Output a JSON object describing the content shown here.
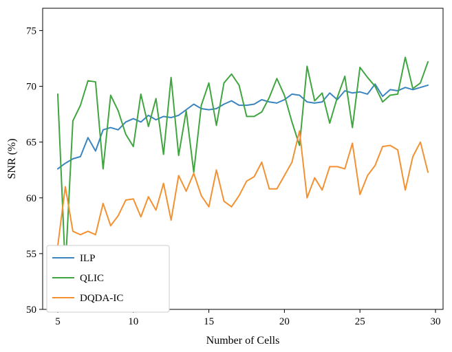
{
  "chart_data": {
    "type": "line",
    "title": "",
    "xlabel": "Number of Cells",
    "ylabel": "SNR (%)",
    "xlim": [
      4,
      30.5
    ],
    "ylim": [
      50,
      77
    ],
    "xticks": [
      5,
      10,
      15,
      20,
      25,
      30
    ],
    "yticks": [
      50,
      55,
      60,
      65,
      70,
      75
    ],
    "grid": false,
    "legend_position": "bottom-left",
    "x": [
      5,
      5.5,
      6,
      6.5,
      7,
      7.5,
      8,
      8.5,
      9,
      9.5,
      10,
      10.5,
      11,
      11.5,
      12,
      12.5,
      13,
      13.5,
      14,
      14.5,
      15,
      15.5,
      16,
      16.5,
      17,
      17.5,
      18,
      18.5,
      19,
      19.5,
      20,
      20.5,
      21,
      21.5,
      22,
      22.5,
      23,
      23.5,
      24,
      24.5,
      25,
      25.5,
      26,
      26.5,
      27,
      27.5,
      28,
      28.5,
      29,
      29.5
    ],
    "series": [
      {
        "name": "ILP",
        "color": "#3a84c0",
        "values": [
          62.6,
          63.1,
          63.5,
          63.7,
          65.4,
          64.2,
          66.1,
          66.3,
          66.1,
          66.8,
          67.1,
          66.8,
          67.4,
          67.0,
          67.3,
          67.2,
          67.4,
          67.9,
          68.4,
          68.0,
          67.9,
          68.0,
          68.4,
          68.7,
          68.3,
          68.3,
          68.4,
          68.8,
          68.6,
          68.5,
          68.8,
          69.3,
          69.2,
          68.6,
          68.5,
          68.6,
          69.4,
          68.8,
          69.6,
          69.4,
          69.5,
          69.3,
          70.2,
          69.1,
          69.7,
          69.6,
          69.9,
          69.7,
          69.9,
          70.1
        ]
      },
      {
        "name": "QLIC",
        "color": "#3fa53f",
        "values": [
          69.3,
          53.6,
          66.9,
          68.3,
          70.5,
          70.4,
          62.6,
          69.2,
          67.8,
          65.7,
          64.6,
          69.3,
          66.4,
          68.9,
          63.9,
          70.8,
          63.8,
          67.8,
          62.3,
          68.3,
          70.3,
          66.5,
          70.3,
          71.1,
          70.1,
          67.3,
          67.3,
          67.7,
          69.0,
          70.7,
          69.2,
          66.8,
          64.7,
          71.8,
          68.7,
          69.4,
          66.7,
          69.0,
          70.9,
          66.3,
          71.7,
          70.8,
          70.0,
          68.6,
          69.2,
          69.3,
          72.6,
          69.8,
          70.3,
          72.2
        ]
      },
      {
        "name": "DQDA-IC",
        "color": "#f39131",
        "values": [
          55.7,
          61.0,
          57.0,
          56.7,
          57.0,
          56.7,
          59.5,
          57.5,
          58.4,
          59.8,
          59.9,
          58.3,
          60.1,
          58.9,
          61.3,
          58.0,
          62.0,
          60.6,
          62.2,
          60.2,
          59.2,
          62.5,
          59.7,
          59.2,
          60.2,
          61.5,
          61.9,
          63.2,
          60.8,
          60.8,
          62.0,
          63.2,
          66.0,
          60.0,
          61.8,
          60.7,
          62.8,
          62.8,
          62.6,
          64.9,
          60.3,
          62.0,
          62.9,
          64.6,
          64.7,
          64.3,
          60.7,
          63.7,
          65.0,
          62.3
        ]
      }
    ]
  }
}
